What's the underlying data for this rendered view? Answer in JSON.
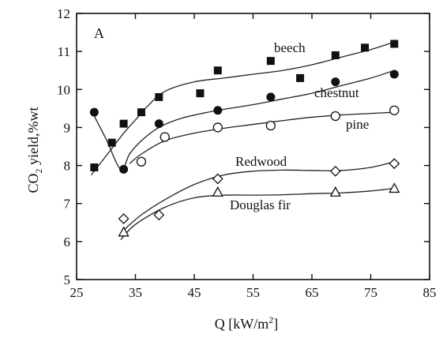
{
  "chart_data": {
    "type": "scatter",
    "panel_label": "A",
    "xlabel_main": "Q [kW/m",
    "xlabel_sup": "2",
    "xlabel_end": "]",
    "ylabel_pre": "CO",
    "ylabel_sub": "2",
    "ylabel_post": " yield,%wt",
    "xlim": [
      25,
      85
    ],
    "ylim": [
      5,
      12
    ],
    "xticks": [
      25,
      35,
      45,
      55,
      65,
      75,
      85
    ],
    "yticks": [
      5,
      6,
      7,
      8,
      9,
      10,
      11,
      12
    ],
    "grid": false,
    "series": [
      {
        "name": "beech",
        "marker": "filled-square",
        "x": [
          28,
          31,
          33,
          36,
          39,
          46,
          49,
          58,
          63,
          69,
          74,
          79
        ],
        "y": [
          7.95,
          8.6,
          9.1,
          9.4,
          9.8,
          9.9,
          10.5,
          10.75,
          10.3,
          10.9,
          11.1,
          11.2
        ],
        "fit_x": [
          27.5,
          29,
          31,
          33,
          35,
          37,
          40,
          45,
          50,
          55,
          60,
          65,
          70,
          75,
          79
        ],
        "fit_y": [
          7.75,
          8.05,
          8.45,
          8.85,
          9.2,
          9.55,
          9.95,
          10.2,
          10.3,
          10.4,
          10.5,
          10.65,
          10.85,
          11.05,
          11.25
        ]
      },
      {
        "name": "chestnut",
        "marker": "filled-circle",
        "x": [
          28,
          33,
          39,
          49,
          58,
          69,
          79
        ],
        "y": [
          9.4,
          7.9,
          9.1,
          9.45,
          9.8,
          10.2,
          10.4
        ],
        "fit_x": [
          27.5,
          30,
          32.5,
          34,
          36,
          39,
          43,
          49,
          55,
          60,
          65,
          70,
          75,
          79
        ],
        "fit_y": [
          9.45,
          8.7,
          7.9,
          8.3,
          8.65,
          9.0,
          9.25,
          9.45,
          9.6,
          9.75,
          9.9,
          10.1,
          10.3,
          10.5
        ]
      },
      {
        "name": "pine",
        "marker": "open-circle",
        "x": [
          36,
          40,
          49,
          58,
          69,
          79
        ],
        "y": [
          8.1,
          8.75,
          9.0,
          9.05,
          9.3,
          9.45
        ],
        "fit_x": [
          34,
          36,
          40,
          45,
          50,
          55,
          60,
          65,
          70,
          75,
          79
        ],
        "fit_y": [
          8.05,
          8.3,
          8.65,
          8.85,
          8.98,
          9.08,
          9.18,
          9.27,
          9.33,
          9.37,
          9.4
        ]
      },
      {
        "name": "Redwood",
        "marker": "open-diamond",
        "x": [
          33,
          39,
          49,
          69,
          79
        ],
        "y": [
          6.6,
          6.7,
          7.65,
          7.85,
          8.05
        ],
        "fit_x": [
          33,
          36,
          40,
          45,
          50,
          55,
          60,
          65,
          70,
          75,
          79
        ],
        "fit_y": [
          6.3,
          6.7,
          7.1,
          7.5,
          7.75,
          7.85,
          7.88,
          7.87,
          7.87,
          7.95,
          8.1
        ]
      },
      {
        "name": "Douglas fir",
        "marker": "open-triangle",
        "x": [
          33,
          49,
          69,
          79
        ],
        "y": [
          6.25,
          7.3,
          7.3,
          7.4
        ],
        "fit_x": [
          32.5,
          35,
          40,
          45,
          50,
          55,
          60,
          65,
          70,
          75,
          79
        ],
        "fit_y": [
          6.05,
          6.45,
          6.9,
          7.15,
          7.22,
          7.22,
          7.23,
          7.26,
          7.28,
          7.33,
          7.4
        ]
      }
    ]
  }
}
